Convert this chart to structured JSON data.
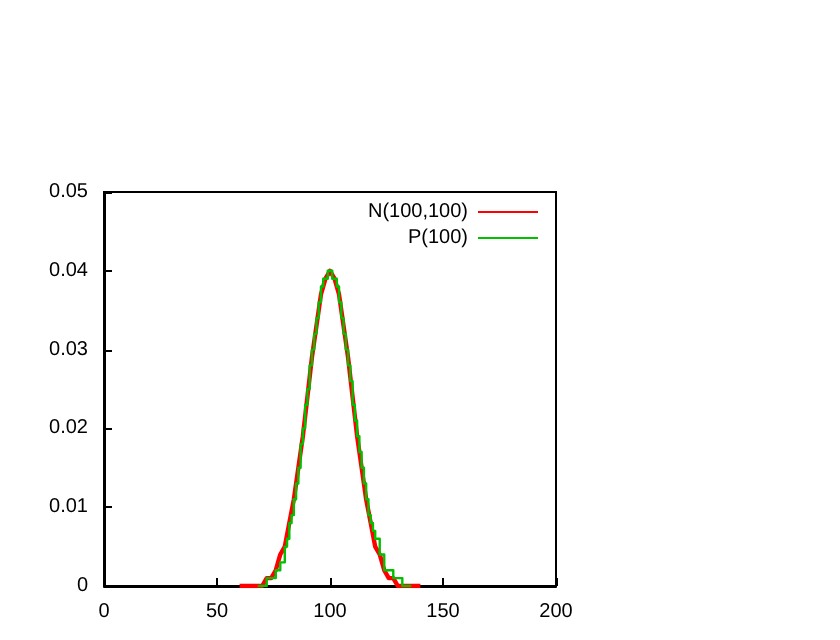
{
  "chart_data": {
    "type": "line",
    "xlim": [
      0,
      200
    ],
    "xticks": [
      0,
      50,
      100,
      150,
      200
    ],
    "ylim": [
      0,
      0.05
    ],
    "yticks": [
      0,
      0.01,
      0.02,
      0.03,
      0.04,
      0.05
    ],
    "grid": false,
    "legend": "top right",
    "marker": "none",
    "line_style": "solid",
    "series": [
      {
        "name": "N(100,100)",
        "color": "#ff0000",
        "x": [
          60,
          62,
          64,
          66,
          68,
          70,
          72,
          74,
          76,
          78,
          80,
          82,
          84,
          86,
          88,
          90,
          92,
          94,
          96,
          98,
          100,
          102,
          104,
          106,
          108,
          110,
          112,
          114,
          116,
          118,
          120,
          122,
          124,
          126,
          128,
          130,
          132,
          134,
          136,
          138,
          140
        ],
        "values": [
          0,
          0,
          0,
          0,
          0,
          0,
          0.001,
          0.001,
          0.002,
          0.004,
          0.005,
          0.008,
          0.011,
          0.015,
          0.019,
          0.024,
          0.029,
          0.033,
          0.037,
          0.039,
          0.04,
          0.039,
          0.037,
          0.033,
          0.029,
          0.024,
          0.019,
          0.015,
          0.011,
          0.008,
          0.005,
          0.004,
          0.002,
          0.001,
          0.001,
          0,
          0,
          0,
          0,
          0,
          0
        ]
      },
      {
        "name": "P(100)",
        "type": "step",
        "color": "#00c000",
        "x": [
          68,
          70,
          72,
          74,
          76,
          78,
          80,
          81,
          82,
          83,
          84,
          85,
          86,
          87,
          88,
          89,
          90,
          91,
          92,
          93,
          94,
          95,
          96,
          97,
          98,
          99,
          100,
          101,
          102,
          103,
          104,
          105,
          106,
          107,
          108,
          109,
          110,
          111,
          112,
          113,
          114,
          115,
          116,
          117,
          118,
          119,
          120,
          122,
          124,
          126,
          128,
          130,
          132,
          134,
          136
        ],
        "values": [
          0,
          0,
          0.001,
          0.001,
          0.002,
          0.003,
          0.005,
          0.006,
          0.008,
          0.009,
          0.011,
          0.013,
          0.015,
          0.018,
          0.02,
          0.023,
          0.025,
          0.028,
          0.03,
          0.032,
          0.034,
          0.036,
          0.038,
          0.039,
          0.039,
          0.04,
          0.04,
          0.039,
          0.039,
          0.038,
          0.036,
          0.034,
          0.032,
          0.03,
          0.028,
          0.026,
          0.023,
          0.021,
          0.019,
          0.017,
          0.015,
          0.013,
          0.011,
          0.009,
          0.008,
          0.007,
          0.006,
          0.004,
          0.002,
          0.002,
          0.001,
          0.001,
          0,
          0,
          0
        ]
      }
    ]
  }
}
